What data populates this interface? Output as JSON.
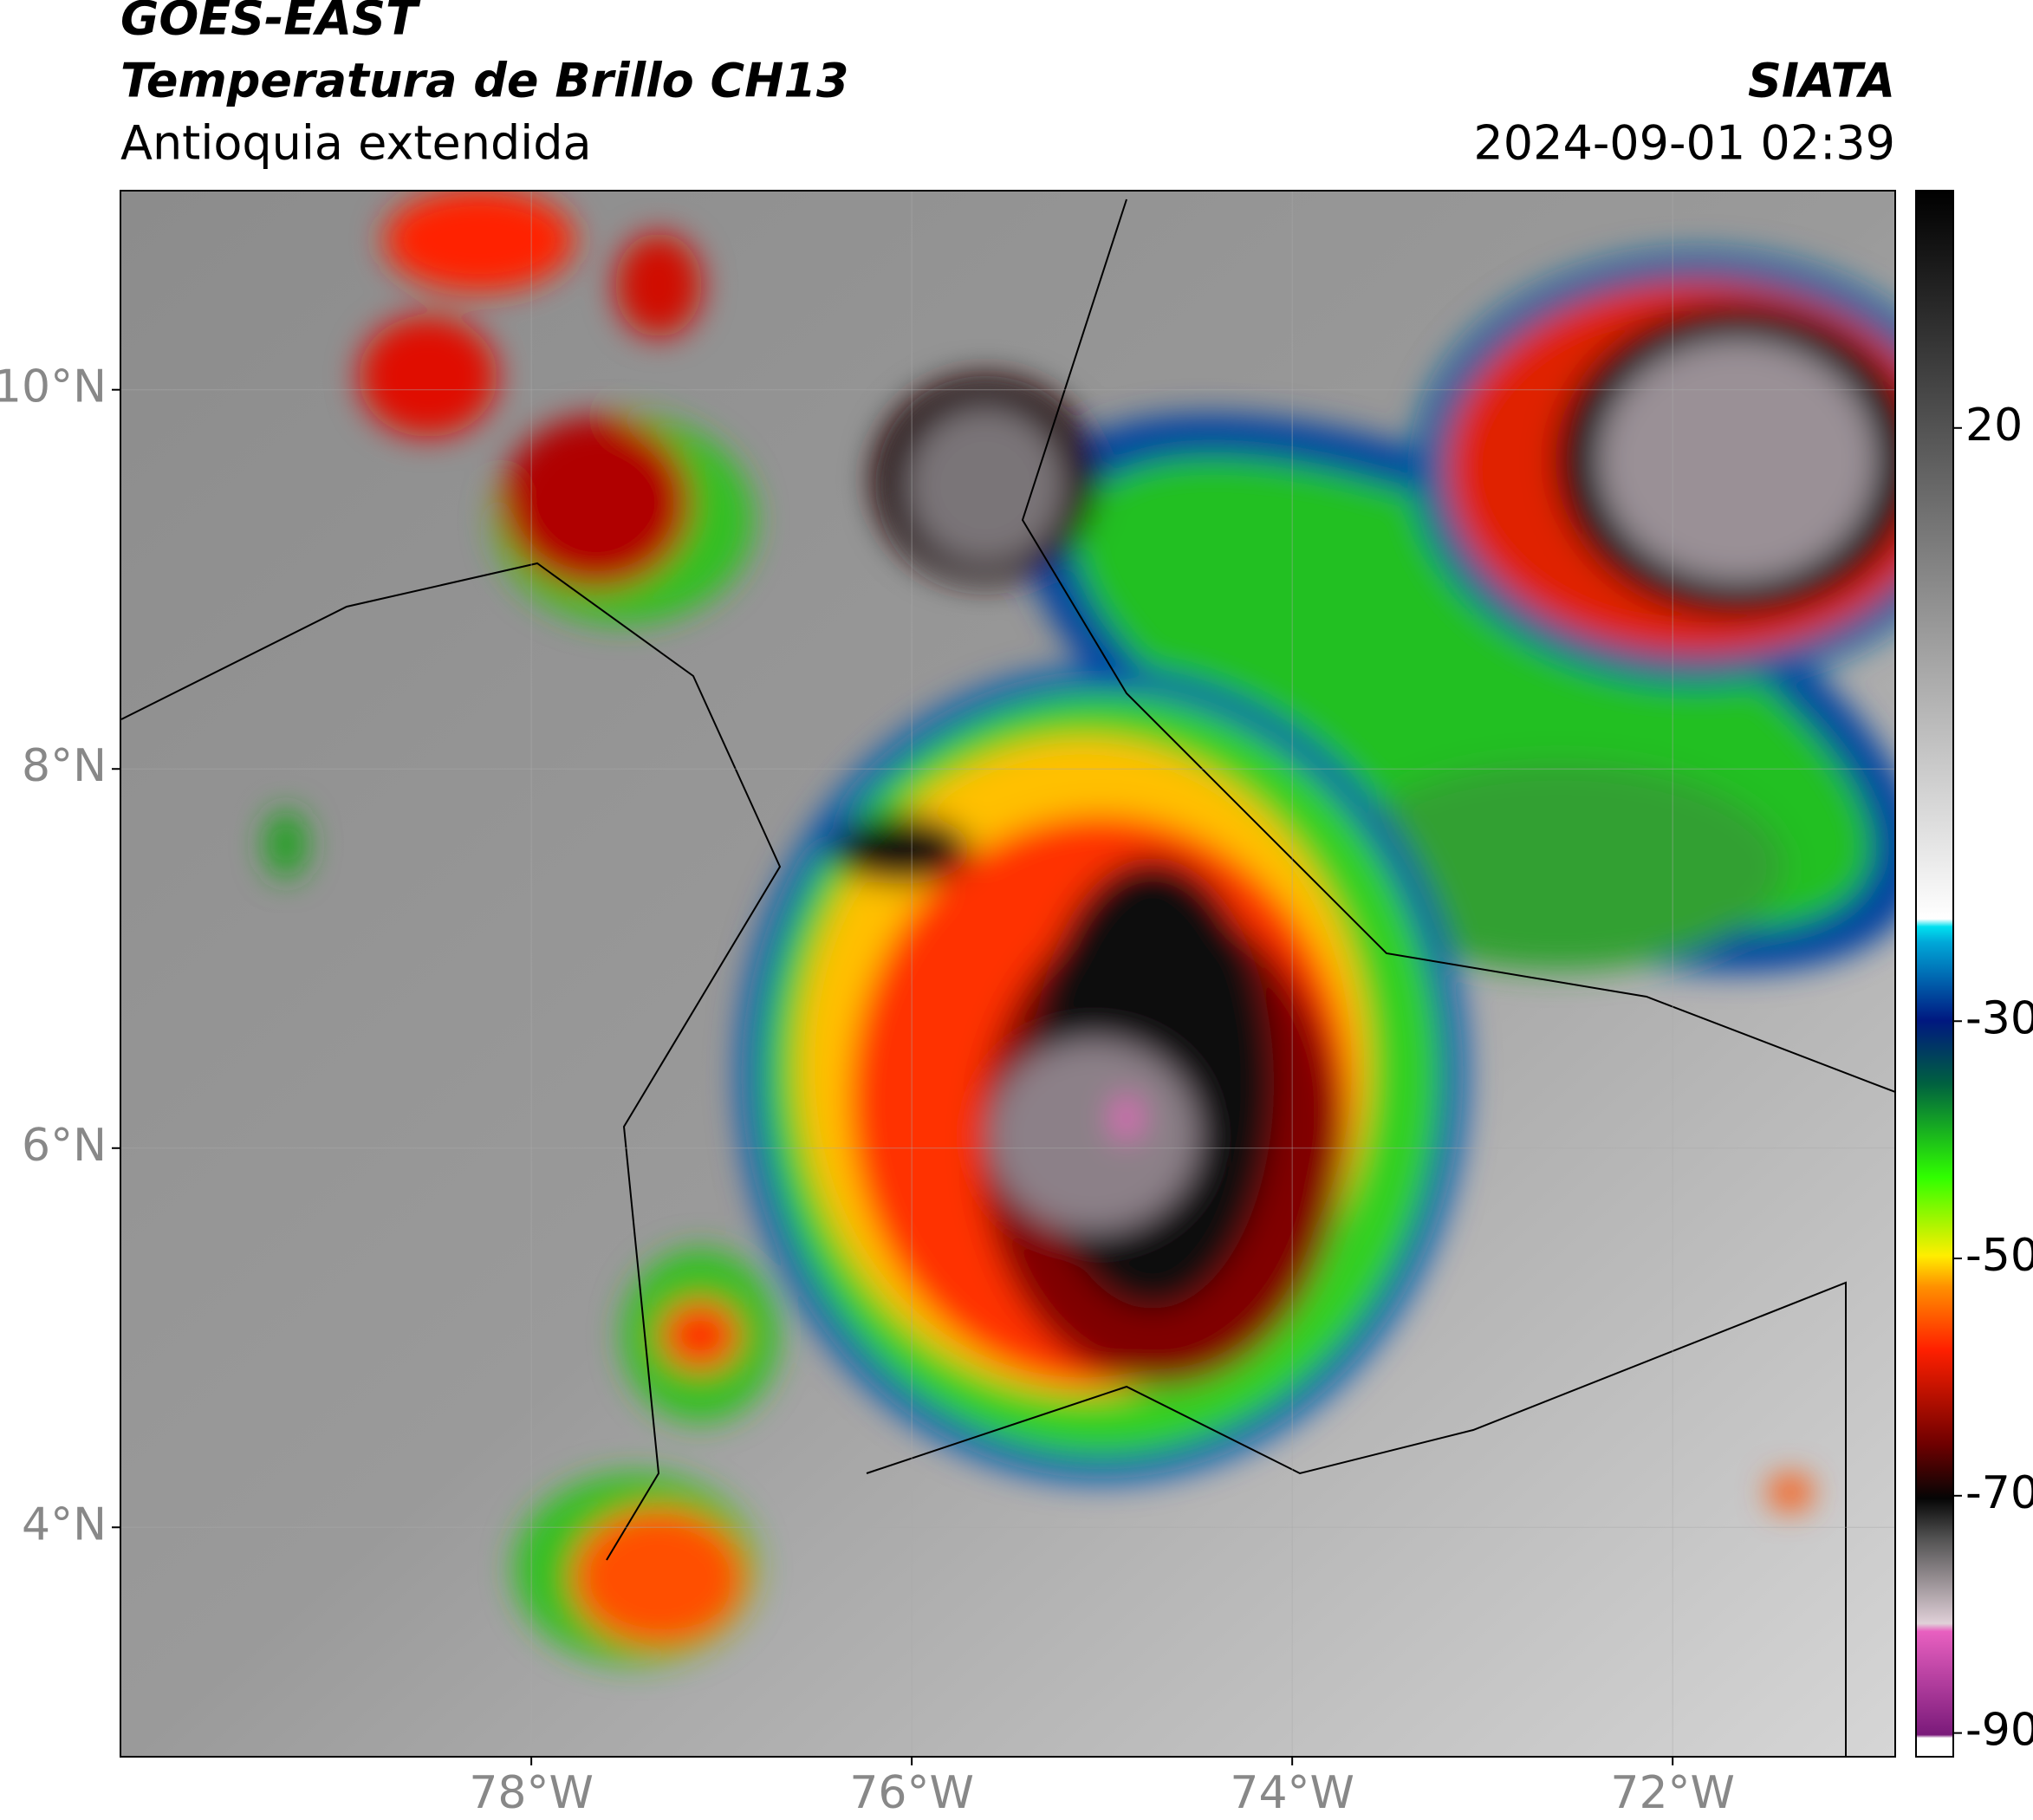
{
  "header": {
    "satellite": "GOES-EAST",
    "product": "Temperatura de Brillo CH13",
    "region": "Antioquia extendida",
    "source": "SIATA",
    "datetime": "2024-09-01 02:39"
  },
  "map": {
    "xlim": [
      -80.16,
      -70.83
    ],
    "ylim": [
      2.79,
      11.05
    ],
    "xticks": [
      {
        "value": -78,
        "label": "78°W"
      },
      {
        "value": -76,
        "label": "76°W"
      },
      {
        "value": -74,
        "label": "74°W"
      },
      {
        "value": -72,
        "label": "72°W"
      }
    ],
    "yticks": [
      {
        "value": 4,
        "label": "4°N"
      },
      {
        "value": 6,
        "label": "6°N"
      },
      {
        "value": 8,
        "label": "8°N"
      },
      {
        "value": 10,
        "label": "10°N"
      }
    ]
  },
  "colorbar": {
    "lim": [
      -92,
      40
    ],
    "ticks": [
      -90,
      -70,
      -50,
      -30,
      20
    ]
  }
}
